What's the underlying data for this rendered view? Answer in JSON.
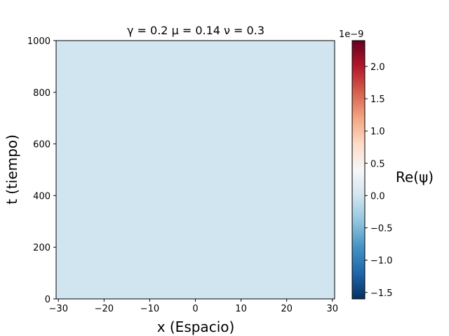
{
  "chart_data": {
    "type": "heatmap",
    "title": "γ = 0.2 μ = 0.14 ν = 0.3",
    "xlabel": "x (Espacio)",
    "ylabel": "t (tiempo)",
    "xlim": [
      -30.5,
      30.5
    ],
    "ylim": [
      0,
      1000
    ],
    "xticks": [
      -30,
      -20,
      -10,
      0,
      10,
      20,
      30
    ],
    "xtick_labels": [
      "−30",
      "−20",
      "−10",
      "0",
      "10",
      "20",
      "30"
    ],
    "yticks": [
      0,
      200,
      400,
      600,
      800,
      1000
    ],
    "ytick_labels": [
      "0",
      "200",
      "400",
      "600",
      "800",
      "1000"
    ],
    "field_value": 0,
    "field_color": "#d1e5f0",
    "colorbar": {
      "label": "Re(ψ)",
      "offset_text": "1e−9",
      "colormap": "RdBu_r",
      "vmin": -1.6,
      "vmax": 2.4,
      "ticks": [
        -1.5,
        -1.0,
        -0.5,
        0.0,
        0.5,
        1.0,
        1.5,
        2.0
      ],
      "tick_labels": [
        "−1.5",
        "−1.0",
        "−0.5",
        "0.0",
        "0.5",
        "1.0",
        "1.5",
        "2.0"
      ]
    }
  }
}
